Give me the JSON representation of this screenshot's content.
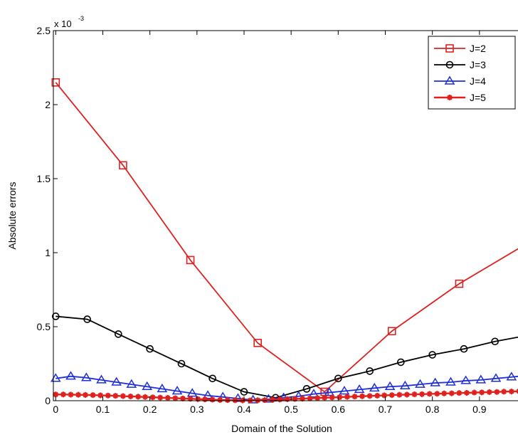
{
  "chart_data": {
    "type": "line",
    "title": "",
    "xlabel": "Domain of the Solution",
    "ylabel": "Absolute errors",
    "y_exponent_label": "x 10",
    "y_exponent_power": "-3",
    "xlim": [
      -0.005,
      1.0
    ],
    "ylim": [
      0,
      2.5
    ],
    "xticks": [
      0,
      0.1,
      0.2,
      0.3,
      0.4,
      0.5,
      0.6,
      0.7,
      0.8,
      0.9,
      1
    ],
    "xtick_labels": [
      "0",
      "0.1",
      "0.2",
      "0.3",
      "0.4",
      "0.5",
      "0.6",
      "0.7",
      "0.8",
      "0.9",
      "1"
    ],
    "yticks": [
      0,
      0.5,
      1,
      1.5,
      2,
      2.5
    ],
    "ytick_labels": [
      "0",
      "0.5",
      "1",
      "1.5",
      "2",
      "2.5"
    ],
    "grid": false,
    "legend_position": "top-right",
    "series": [
      {
        "name": "J=2",
        "color": "#dd2222",
        "marker": "square",
        "x": [
          0,
          0.143,
          0.286,
          0.429,
          0.571,
          0.714,
          0.857,
          1.0
        ],
        "y": [
          2.15,
          1.59,
          0.95,
          0.39,
          0.06,
          0.47,
          0.79,
          1.06
        ]
      },
      {
        "name": "J=3",
        "color": "#000000",
        "marker": "circle",
        "x": [
          0,
          0.067,
          0.133,
          0.2,
          0.267,
          0.333,
          0.4,
          0.467,
          0.533,
          0.6,
          0.667,
          0.733,
          0.8,
          0.867,
          0.933,
          1.0
        ],
        "y": [
          0.57,
          0.55,
          0.45,
          0.35,
          0.25,
          0.15,
          0.06,
          0.02,
          0.08,
          0.15,
          0.2,
          0.26,
          0.31,
          0.35,
          0.4,
          0.44
        ]
      },
      {
        "name": "J=4",
        "color": "#1f2fd6",
        "marker": "triangle",
        "x": [
          0,
          0.032,
          0.065,
          0.097,
          0.129,
          0.161,
          0.194,
          0.226,
          0.258,
          0.29,
          0.323,
          0.355,
          0.387,
          0.419,
          0.452,
          0.484,
          0.516,
          0.548,
          0.581,
          0.613,
          0.645,
          0.677,
          0.71,
          0.742,
          0.774,
          0.806,
          0.839,
          0.871,
          0.903,
          0.935,
          0.968,
          1.0
        ],
        "y": [
          0.15,
          0.165,
          0.155,
          0.14,
          0.125,
          0.11,
          0.095,
          0.08,
          0.065,
          0.05,
          0.035,
          0.025,
          0.015,
          0.005,
          0.01,
          0.02,
          0.03,
          0.045,
          0.055,
          0.065,
          0.075,
          0.085,
          0.095,
          0.1,
          0.11,
          0.12,
          0.125,
          0.135,
          0.14,
          0.15,
          0.16,
          0.17
        ]
      },
      {
        "name": "J=5",
        "color": "#e0201c",
        "marker": "star",
        "x": [
          0,
          0.016,
          0.032,
          0.048,
          0.063,
          0.079,
          0.095,
          0.111,
          0.127,
          0.143,
          0.159,
          0.175,
          0.19,
          0.206,
          0.222,
          0.238,
          0.254,
          0.27,
          0.286,
          0.302,
          0.317,
          0.333,
          0.349,
          0.365,
          0.381,
          0.397,
          0.413,
          0.429,
          0.444,
          0.46,
          0.476,
          0.492,
          0.508,
          0.524,
          0.54,
          0.556,
          0.571,
          0.587,
          0.603,
          0.619,
          0.635,
          0.651,
          0.667,
          0.683,
          0.698,
          0.714,
          0.73,
          0.746,
          0.762,
          0.778,
          0.794,
          0.81,
          0.825,
          0.841,
          0.857,
          0.873,
          0.889,
          0.905,
          0.921,
          0.937,
          0.952,
          0.968,
          0.984,
          1.0
        ],
        "y": [
          0.042,
          0.042,
          0.041,
          0.04,
          0.039,
          0.038,
          0.036,
          0.035,
          0.033,
          0.031,
          0.029,
          0.027,
          0.025,
          0.023,
          0.021,
          0.019,
          0.017,
          0.015,
          0.013,
          0.011,
          0.009,
          0.007,
          0.005,
          0.004,
          0.003,
          0.002,
          0.002,
          0.003,
          0.004,
          0.006,
          0.008,
          0.01,
          0.012,
          0.014,
          0.016,
          0.018,
          0.02,
          0.022,
          0.024,
          0.026,
          0.028,
          0.03,
          0.032,
          0.034,
          0.036,
          0.038,
          0.04,
          0.041,
          0.043,
          0.044,
          0.046,
          0.047,
          0.049,
          0.05,
          0.052,
          0.053,
          0.055,
          0.056,
          0.058,
          0.059,
          0.061,
          0.062,
          0.064,
          0.065
        ]
      }
    ]
  }
}
